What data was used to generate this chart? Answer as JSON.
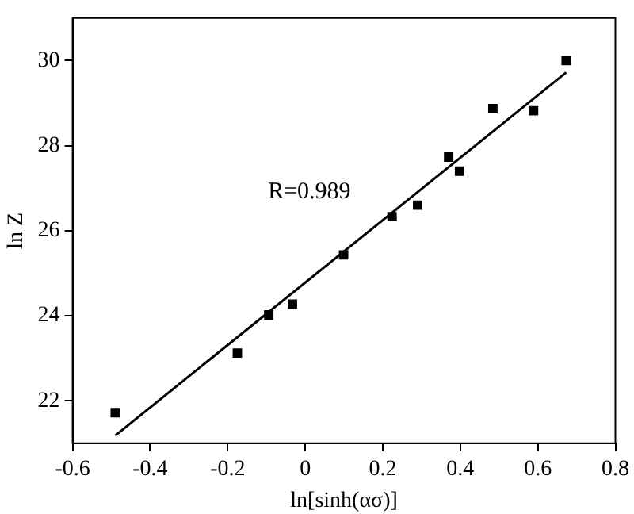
{
  "chart_data": {
    "type": "scatter",
    "xlabel": "ln[sinh(ασ)]",
    "ylabel": "ln Z",
    "annotations": [
      "R=0.989"
    ],
    "grid": false,
    "legend": false,
    "xlim": [
      -0.6,
      0.8
    ],
    "xticks": [
      -0.6,
      -0.4,
      -0.2,
      0,
      0.2,
      0.4,
      0.6,
      0.8
    ],
    "ylim": [
      21,
      31
    ],
    "yticks": [
      22,
      24,
      26,
      28,
      30
    ],
    "series": [
      {
        "marker": "square",
        "color": "#000000",
        "x": [
          -0.49,
          -0.175,
          -0.094,
          -0.033,
          0.099,
          0.224,
          0.29,
          0.37,
          0.398,
          0.484,
          0.589,
          0.673
        ],
        "values": [
          21.72,
          23.12,
          24.02,
          24.27,
          25.43,
          26.33,
          26.6,
          27.73,
          27.4,
          28.87,
          28.82,
          30.0
        ]
      },
      {
        "type": "line",
        "marker": "none",
        "color": "#000000",
        "x": [
          -0.49,
          0.673
        ],
        "values": [
          21.18,
          29.72
        ]
      }
    ]
  }
}
